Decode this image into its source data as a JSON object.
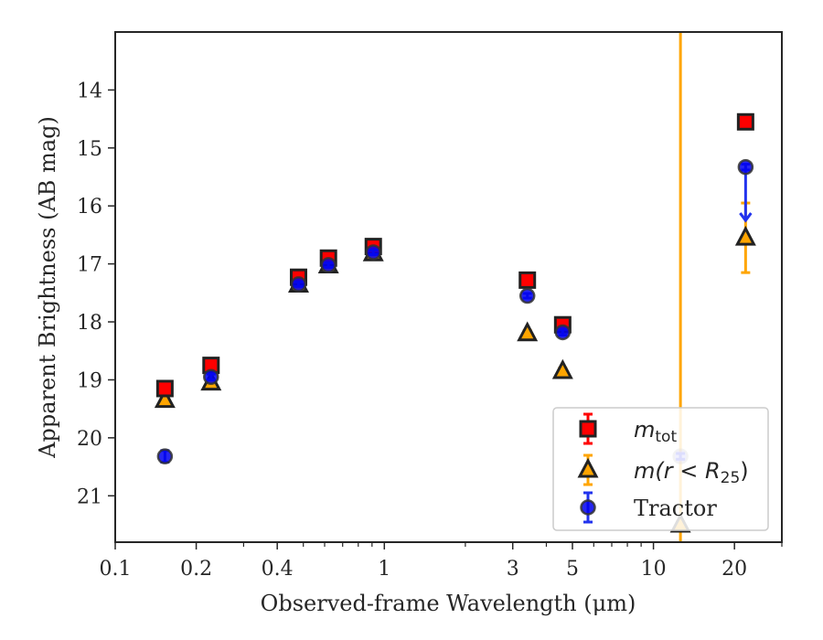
{
  "chart_data": {
    "type": "scatter",
    "xscale": "log",
    "xlim": [
      0.1,
      30
    ],
    "ylim": [
      21.8,
      13.0
    ],
    "y_inverted": true,
    "xlabel": "Observed-frame Wavelength (μm)",
    "ylabel": "Apparent Brightness (AB mag)",
    "x_ticks": [
      {
        "value": 0.1,
        "label": "0.1"
      },
      {
        "value": 0.2,
        "label": "0.2"
      },
      {
        "value": 0.4,
        "label": "0.4"
      },
      {
        "value": 1,
        "label": "1"
      },
      {
        "value": 3,
        "label": "3"
      },
      {
        "value": 5,
        "label": "5"
      },
      {
        "value": 10,
        "label": "10"
      },
      {
        "value": 20,
        "label": "20"
      }
    ],
    "x_minor_ticks": [
      0.3,
      0.5,
      0.6,
      0.7,
      0.8,
      0.9,
      2,
      4,
      6,
      7,
      8,
      9,
      30
    ],
    "y_ticks": [
      {
        "value": 14,
        "label": "14"
      },
      {
        "value": 15,
        "label": "15"
      },
      {
        "value": 16,
        "label": "16"
      },
      {
        "value": 17,
        "label": "17"
      },
      {
        "value": 18,
        "label": "18"
      },
      {
        "value": 19,
        "label": "19"
      },
      {
        "value": 20,
        "label": "20"
      },
      {
        "value": 21,
        "label": "21"
      }
    ],
    "legend_position": "lower-right",
    "vertical_line": {
      "x": 12.6,
      "color": "#ffa500"
    },
    "series": [
      {
        "key": "mtot",
        "label_base": "m",
        "label_sub": "tot",
        "marker": "square",
        "face_color": "#ff0000",
        "edge_color": "#222222",
        "error_color": "#ff0000",
        "points": [
          {
            "x": 0.153,
            "y": 19.15,
            "err": 0.06
          },
          {
            "x": 0.227,
            "y": 18.75,
            "err": 0.05
          },
          {
            "x": 0.48,
            "y": 17.23,
            "err": 0.04
          },
          {
            "x": 0.62,
            "y": 16.9,
            "err": 0.04
          },
          {
            "x": 0.91,
            "y": 16.7,
            "err": 0.04
          },
          {
            "x": 3.4,
            "y": 17.28,
            "err": 0.04
          },
          {
            "x": 4.6,
            "y": 18.05,
            "err": 0.05
          },
          {
            "x": 22.0,
            "y": 14.55,
            "err": 0.04
          }
        ]
      },
      {
        "key": "mr25",
        "label_text": "m(r < R",
        "label_sub": "25",
        "label_close": ")",
        "marker": "triangle",
        "face_color": "#ffa500",
        "edge_color": "#222222",
        "error_color": "#ffa500",
        "points": [
          {
            "x": 0.153,
            "y": 19.35,
            "err": 0.05
          },
          {
            "x": 0.227,
            "y": 19.05,
            "err": 0.05
          },
          {
            "x": 0.48,
            "y": 17.36,
            "err": 0.04
          },
          {
            "x": 0.62,
            "y": 17.03,
            "err": 0.04
          },
          {
            "x": 0.91,
            "y": 16.82,
            "err": 0.04
          },
          {
            "x": 3.4,
            "y": 18.2,
            "err": 0.05
          },
          {
            "x": 4.6,
            "y": 18.85,
            "err": 0.05
          },
          {
            "x": 12.6,
            "y": 21.5,
            "err": 0.05
          },
          {
            "x": 22.0,
            "y": 16.55,
            "err": 0.6
          }
        ]
      },
      {
        "key": "tractor",
        "label": "Tractor",
        "marker": "circle",
        "face_color": "#0000ee",
        "edge_color": "#333333",
        "error_color": "#2233ee",
        "points": [
          {
            "x": 0.153,
            "y": 20.32,
            "err": 0.1
          },
          {
            "x": 0.227,
            "y": 18.95,
            "err": 0.05
          },
          {
            "x": 0.48,
            "y": 17.35,
            "err": 0.04
          },
          {
            "x": 0.62,
            "y": 17.02,
            "err": 0.04
          },
          {
            "x": 0.91,
            "y": 16.8,
            "err": 0.04
          },
          {
            "x": 3.4,
            "y": 17.55,
            "err": 0.04
          },
          {
            "x": 4.6,
            "y": 18.18,
            "err": 0.05
          },
          {
            "x": 12.6,
            "y": 20.32,
            "err": 0.05,
            "faded": true
          },
          {
            "x": 22.0,
            "y": 15.33,
            "err": 0.05,
            "upper_limit_to": 16.25
          }
        ]
      }
    ]
  }
}
